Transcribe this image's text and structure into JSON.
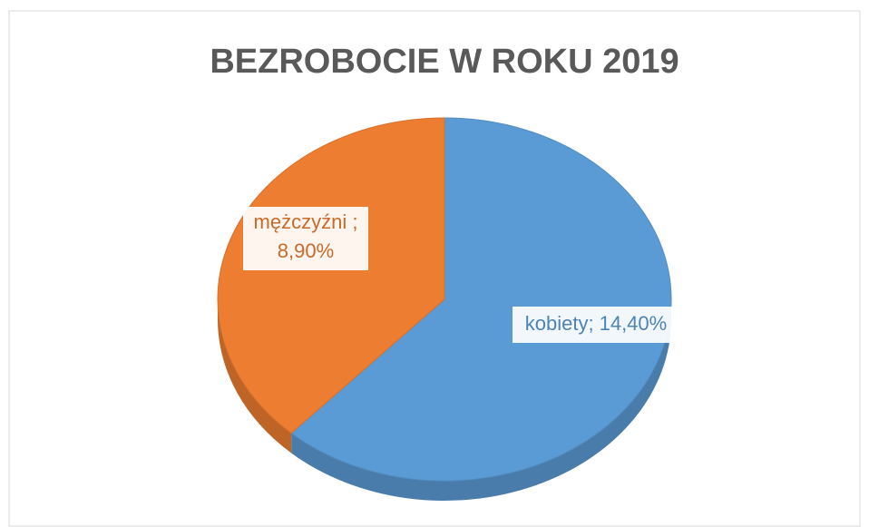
{
  "chart_data": {
    "type": "pie",
    "title": "BEZROBOCIE W ROKU 2019",
    "categories": [
      "kobiety;",
      "mężczyźni ;"
    ],
    "values": [
      14.4,
      8.9
    ],
    "value_labels": [
      "14,40%",
      "8,90%"
    ],
    "colors": [
      "#5b9bd5",
      "#ed7d31"
    ]
  }
}
